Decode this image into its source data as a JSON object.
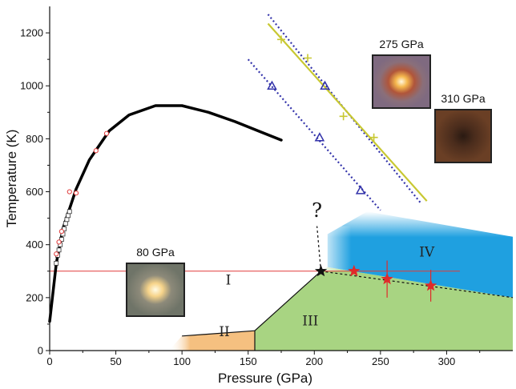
{
  "chart_data": {
    "type": "scatter",
    "xlabel": "Pressure (GPa)",
    "ylabel": "Temperature (K)",
    "xlim": [
      0,
      350
    ],
    "ylim": [
      0,
      1300
    ],
    "x_ticks": [
      0,
      50,
      100,
      150,
      200,
      250,
      300
    ],
    "y_ticks": [
      0,
      200,
      400,
      600,
      800,
      1000,
      1200
    ],
    "colors": {
      "melting_curve": "#000000",
      "circle_points": "#e03a3a",
      "square_points": "#333333",
      "triangles": "#3333aa",
      "plus_points": "#c8c832",
      "isotherm": "#e03a3a",
      "stars": "#e02a2a",
      "phase_II": "#f5c080",
      "phase_III": "#a8d482",
      "phase_IV": "#1fa0e0"
    },
    "melting_curve": {
      "x": [
        0,
        5,
        10,
        20,
        30,
        45,
        60,
        80,
        100,
        120,
        140,
        160,
        175
      ],
      "y": [
        110,
        330,
        460,
        610,
        720,
        830,
        890,
        925,
        925,
        900,
        865,
        825,
        795
      ]
    },
    "circle_points": {
      "x": [
        5,
        7,
        9,
        15,
        20,
        35,
        43
      ],
      "y": [
        365,
        410,
        450,
        600,
        595,
        755,
        820
      ]
    },
    "square_points": {
      "x": [
        5,
        6,
        7,
        8,
        9,
        10,
        11,
        12,
        13,
        14,
        15
      ],
      "y": [
        330,
        360,
        380,
        400,
        420,
        440,
        460,
        480,
        495,
        510,
        525
      ]
    },
    "triangles": {
      "x": [
        168,
        204,
        208,
        235
      ],
      "y": [
        1000,
        805,
        1000,
        605
      ]
    },
    "triangle_dotted_lines": [
      {
        "x": [
          150,
          250
        ],
        "y": [
          1100,
          530
        ]
      },
      {
        "x": [
          165,
          280
        ],
        "y": [
          1270,
          560
        ]
      }
    ],
    "plus_points": {
      "x": [
        175,
        195,
        222,
        245
      ],
      "y": [
        1175,
        1105,
        885,
        805
      ]
    },
    "plus_line": {
      "x": [
        165,
        285
      ],
      "y": [
        1235,
        565
      ]
    },
    "isotherm": {
      "y": 300,
      "x": [
        0,
        310
      ]
    },
    "stars": {
      "x": [
        230,
        255,
        288
      ],
      "y": [
        300,
        270,
        245
      ],
      "yerr": [
        0,
        70,
        60
      ]
    },
    "triple_point_star": {
      "x": 205,
      "y": 300
    },
    "phase_labels": [
      {
        "text": "I",
        "x": 135,
        "y": 250
      },
      {
        "text": "II",
        "x": 132,
        "y": 55
      },
      {
        "text": "III",
        "x": 197,
        "y": 95
      },
      {
        "text": "IV",
        "x": 285,
        "y": 355
      }
    ],
    "question_mark": {
      "text": "?",
      "x": 202,
      "y": 505
    },
    "image_labels": [
      "80 GPa",
      "275 GPa",
      "310 GPa"
    ]
  }
}
